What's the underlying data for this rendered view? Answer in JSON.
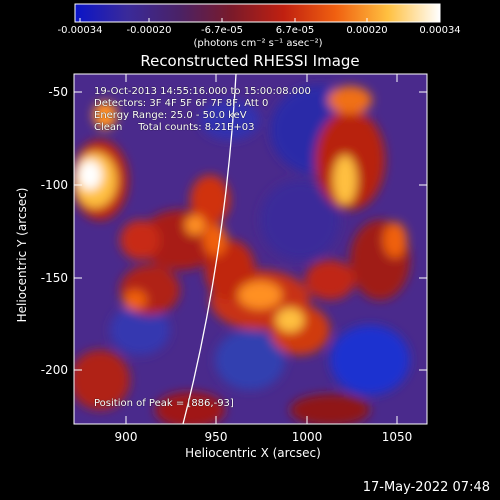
{
  "colorbar": {
    "ticks": [
      "-0.00034",
      "-0.00020",
      "-6.7e-05",
      "6.7e-05",
      "0.00020",
      "0.00034"
    ],
    "unit_label": "(photons cm⁻² s⁻¹ asec⁻²)",
    "colors": [
      "#0a14c8",
      "#3a2a9a",
      "#4a2266",
      "#7a1a2a",
      "#c02010",
      "#f06010",
      "#ffc040",
      "#ffffff"
    ]
  },
  "plot": {
    "title": "Reconstructed RHESSI Image",
    "info_lines": [
      "19-Oct-2013 14:55:16.000 to 15:00:08.000",
      "Detectors: 3F 4F 5F 6F 7F 8F, Att 0",
      "Energy Range: 25.0 - 50.0 keV",
      "Clean     Total counts: 8.21E+03"
    ],
    "peak_text": "Position of Peak = [886,-93]",
    "xlabel": "Heliocentric X (arcsec)",
    "ylabel": "Heliocentric Y (arcsec)",
    "xticks": [
      "900",
      "950",
      "1000",
      "1050"
    ],
    "yticks": [
      "-50",
      "-100",
      "-150",
      "-200"
    ],
    "xrange": [
      870,
      1065
    ],
    "yrange": [
      -230,
      -40
    ]
  },
  "timestamp": "17-May-2022 07:48"
}
